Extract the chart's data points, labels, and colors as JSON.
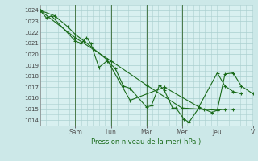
{
  "xlabel": "Pression niveau de la mer( hPa )",
  "background_color": "#cce8e8",
  "plot_bg_color": "#d8f0f0",
  "grid_color": "#aacfcf",
  "line_color": "#1a6b1a",
  "vline_color": "#4a7a4a",
  "ylim": [
    1013.5,
    1024.5
  ],
  "xlim": [
    0,
    13.0
  ],
  "day_labels": [
    "Sam",
    "Lun",
    "Mar",
    "Mer",
    "Jeu",
    "V"
  ],
  "day_positions": [
    2.16,
    4.33,
    6.5,
    8.67,
    10.83,
    13.0
  ],
  "yticks": [
    1014,
    1015,
    1016,
    1017,
    1018,
    1019,
    1020,
    1021,
    1022,
    1023,
    1024
  ],
  "series1_x": [
    0.0,
    0.4,
    0.7,
    2.16,
    2.5,
    2.85,
    3.1,
    3.6,
    4.1,
    4.6,
    5.1,
    5.5,
    6.5,
    6.8,
    7.3,
    7.6,
    8.1,
    8.3,
    8.8,
    9.1,
    9.7,
    10.0,
    10.5,
    10.83,
    11.3,
    11.8
  ],
  "series1_y": [
    1024.0,
    1023.3,
    1023.5,
    1021.2,
    1021.0,
    1021.5,
    1021.0,
    1018.8,
    1019.4,
    1018.7,
    1017.1,
    1016.9,
    1015.2,
    1015.3,
    1017.2,
    1016.7,
    1015.1,
    1015.1,
    1014.1,
    1013.8,
    1015.1,
    1015.0,
    1014.7,
    1014.9,
    1015.0,
    1015.0
  ],
  "series2_x": [
    0.0,
    0.9,
    1.7,
    2.16,
    2.7,
    4.1,
    5.5,
    7.6,
    9.7,
    10.83,
    11.3,
    11.8,
    12.3
  ],
  "series2_y": [
    1024.0,
    1023.5,
    1022.5,
    1021.8,
    1021.2,
    1019.5,
    1015.8,
    1017.0,
    1015.2,
    1018.3,
    1017.1,
    1016.6,
    1016.4
  ],
  "series3_x": [
    0.0,
    2.16,
    4.33,
    6.5,
    8.67,
    10.83,
    11.3,
    11.8,
    12.3,
    13.0
  ],
  "series3_y": [
    1024.0,
    1021.5,
    1019.4,
    1017.2,
    1015.1,
    1014.9,
    1018.2,
    1018.3,
    1017.1,
    1016.4
  ]
}
